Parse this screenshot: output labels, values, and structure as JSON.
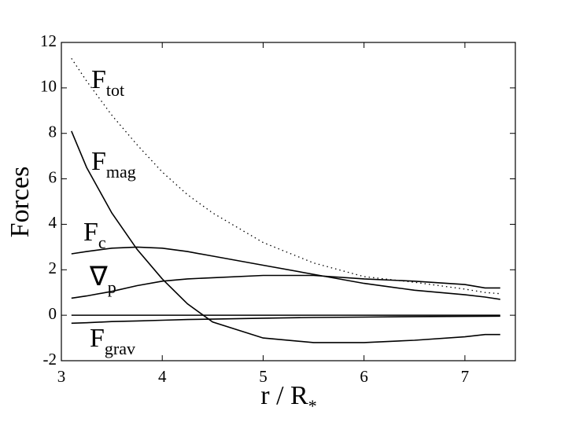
{
  "chart_data": {
    "type": "line",
    "xlabel": "r / R",
    "xlabel_sub": "*",
    "ylabel": "Forces",
    "x": [
      3.1,
      3.25,
      3.5,
      3.75,
      4,
      4.25,
      4.5,
      5,
      5.5,
      6,
      6.5,
      7,
      7.2,
      7.35
    ],
    "series": [
      {
        "label": "F",
        "label_sub": "tot",
        "color": "#000000",
        "style": "dotted",
        "values": [
          11.3,
          10.3,
          8.8,
          7.5,
          6.3,
          5.3,
          4.5,
          3.2,
          2.3,
          1.7,
          1.45,
          1.15,
          1.0,
          0.95
        ]
      },
      {
        "label": "F",
        "label_sub": "mag",
        "color": "#000000",
        "style": "solid",
        "values": [
          8.1,
          6.5,
          4.5,
          2.9,
          1.6,
          0.5,
          -0.3,
          -1.0,
          -1.2,
          -1.2,
          -1.1,
          -0.95,
          -0.85,
          -0.85
        ]
      },
      {
        "label": "F",
        "label_sub": "c",
        "color": "#000000",
        "style": "solid",
        "values": [
          2.7,
          2.8,
          2.95,
          3.0,
          2.95,
          2.8,
          2.6,
          2.2,
          1.8,
          1.4,
          1.1,
          0.9,
          0.8,
          0.7
        ]
      },
      {
        "label": "∇",
        "label_sub": "p",
        "color": "#000000",
        "style": "solid",
        "values": [
          0.75,
          0.85,
          1.05,
          1.3,
          1.5,
          1.6,
          1.65,
          1.75,
          1.75,
          1.6,
          1.5,
          1.35,
          1.2,
          1.2
        ]
      },
      {
        "label": "F",
        "label_sub": "grav",
        "color": "#000000",
        "style": "solid",
        "values": [
          -0.35,
          -0.33,
          -0.28,
          -0.25,
          -0.22,
          -0.19,
          -0.17,
          -0.13,
          -0.1,
          -0.08,
          -0.06,
          -0.05,
          -0.045,
          -0.04
        ]
      }
    ],
    "hline": 0,
    "xlim": [
      3,
      7.5
    ],
    "xticks": [
      3,
      4,
      5,
      6,
      7
    ],
    "ylim": [
      -2,
      12
    ],
    "yticks": [
      -2,
      0,
      2,
      4,
      6,
      8,
      10,
      12
    ],
    "grid": false
  }
}
